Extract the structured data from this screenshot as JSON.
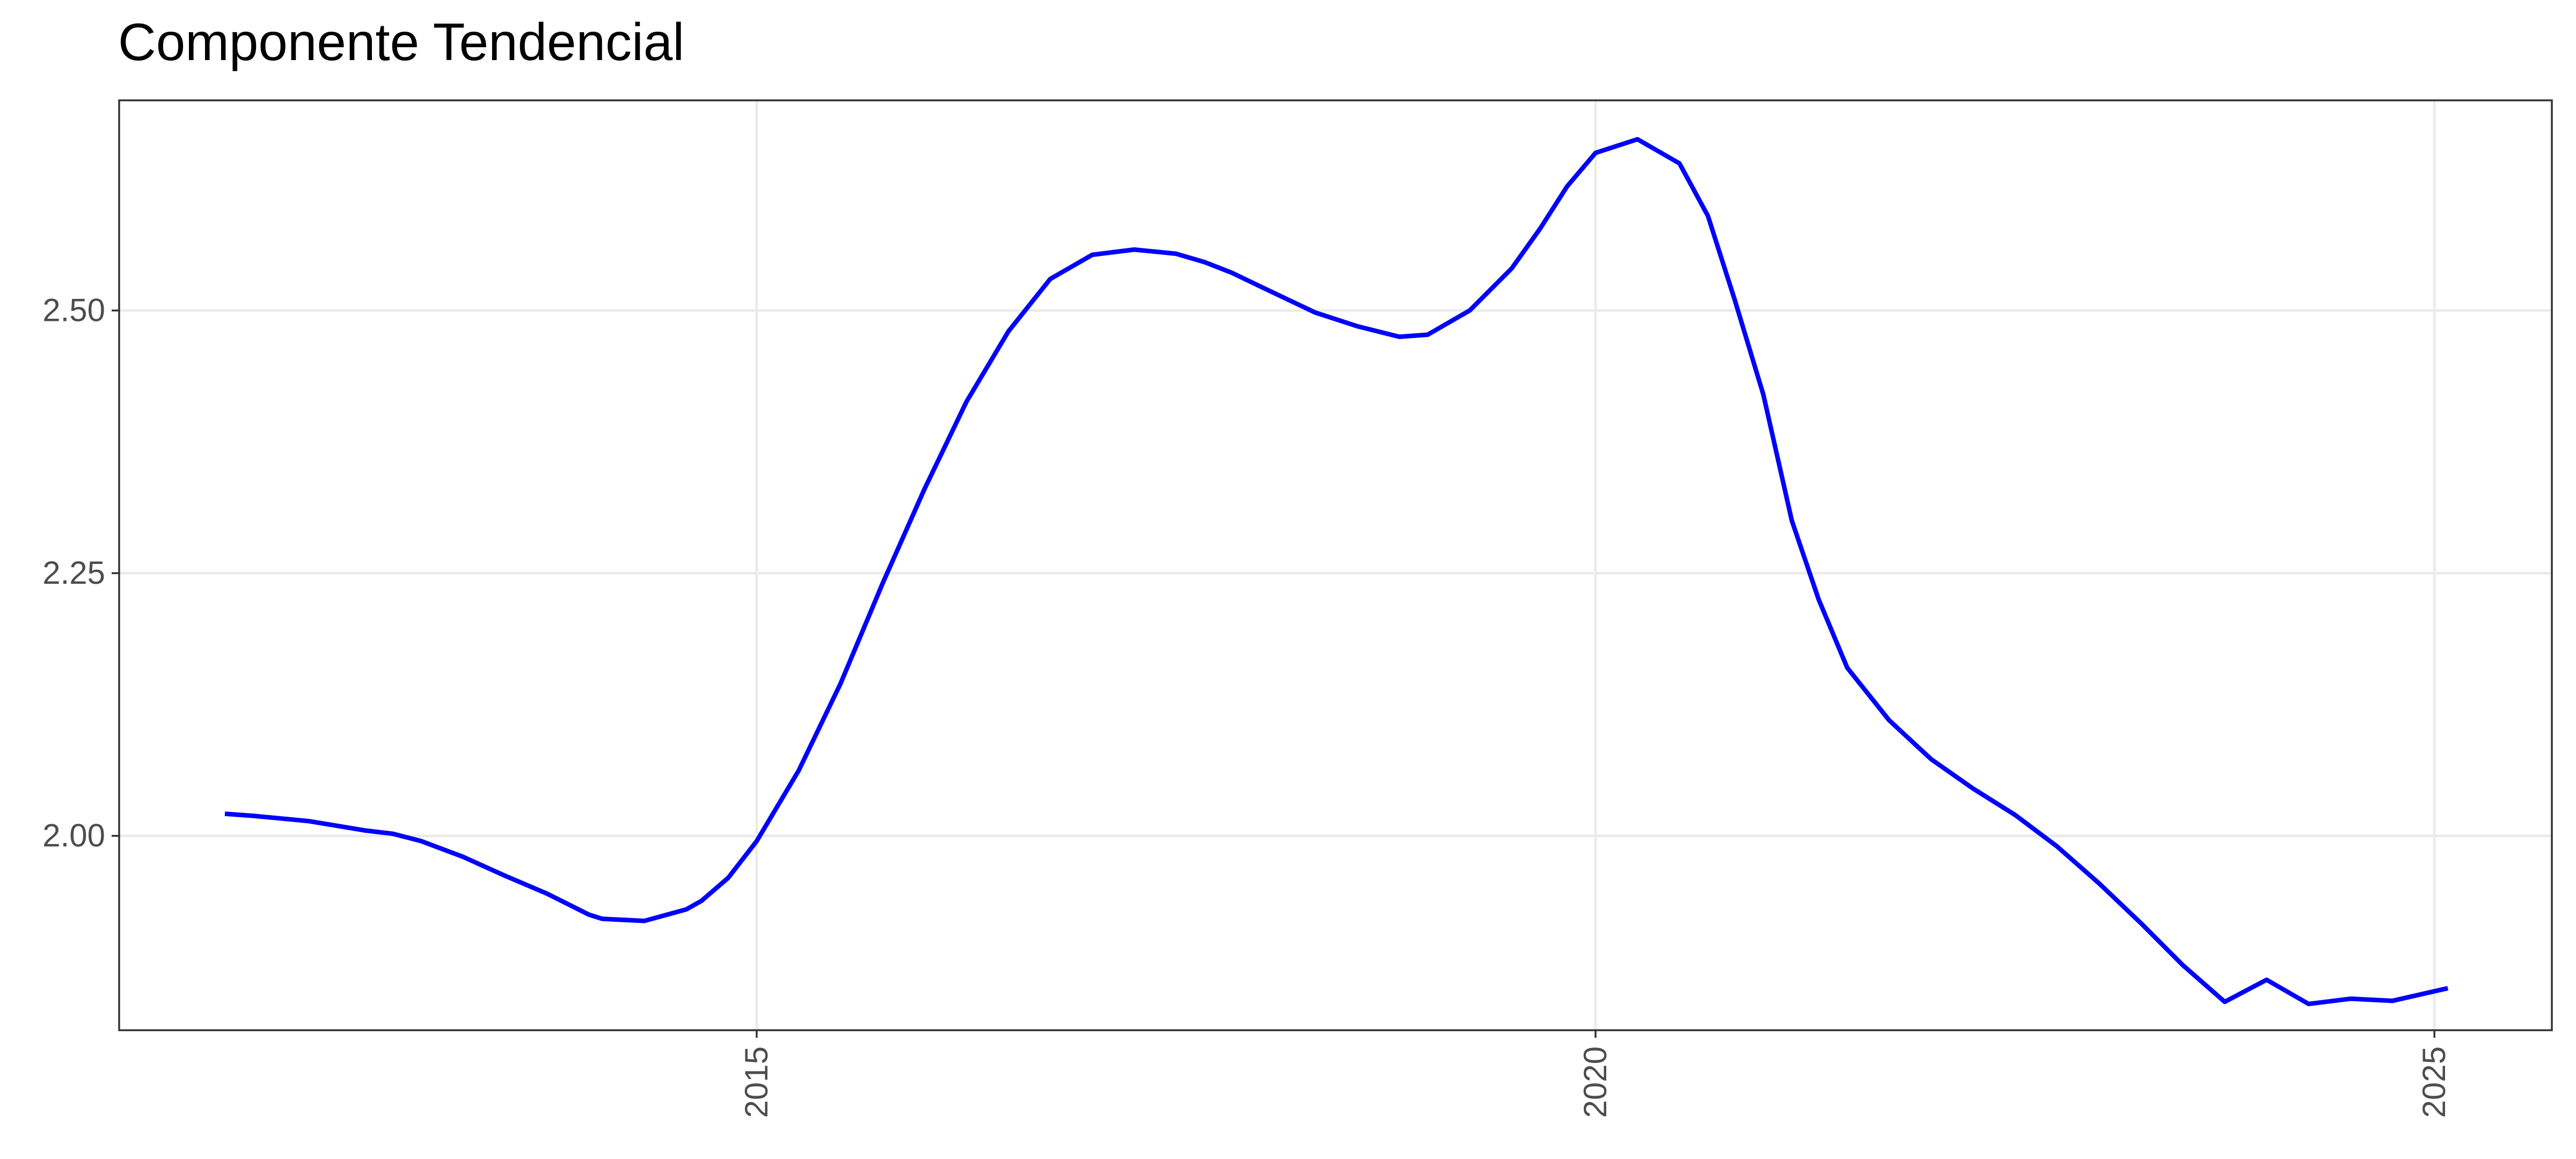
{
  "chart_data": {
    "type": "line",
    "title": "Componente Tendencial",
    "xlabel": "",
    "ylabel": "",
    "xlim": [
      2011.2,
      2025.7
    ],
    "ylim": [
      1.815,
      2.7
    ],
    "x_ticks": [
      2015,
      2020,
      2025
    ],
    "x_tick_labels": [
      "2015",
      "2020",
      "2025"
    ],
    "y_ticks": [
      2.0,
      2.25,
      2.5
    ],
    "y_tick_labels": [
      "2.00",
      "2.25",
      "2.50"
    ],
    "grid": true,
    "legend": "none",
    "color": "#0000ff",
    "series": [
      {
        "x": [
          2011.83,
          2012.0,
          2012.33,
          2012.67,
          2012.83,
          2013.0,
          2013.25,
          2013.5,
          2013.75,
          2014.0,
          2014.08,
          2014.33,
          2014.58,
          2014.67,
          2014.83,
          2015.0,
          2015.25,
          2015.5,
          2015.75,
          2016.0,
          2016.25,
          2016.5,
          2016.75,
          2017.0,
          2017.25,
          2017.5,
          2017.67,
          2017.83,
          2018.0,
          2018.33,
          2018.58,
          2018.83,
          2019.0,
          2019.25,
          2019.5,
          2019.67,
          2019.83,
          2020.0,
          2020.25,
          2020.5,
          2020.67,
          2020.83,
          2021.0,
          2021.17,
          2021.33,
          2021.5,
          2021.75,
          2022.0,
          2022.25,
          2022.5,
          2022.75,
          2023.0,
          2023.25,
          2023.5,
          2023.75,
          2024.0,
          2024.25,
          2024.5,
          2024.75,
          2025.08
        ],
        "y": [
          2.021,
          2.019,
          2.014,
          2.005,
          2.002,
          1.995,
          1.98,
          1.962,
          1.945,
          1.925,
          1.921,
          1.919,
          1.93,
          1.938,
          1.96,
          1.995,
          2.062,
          2.145,
          2.24,
          2.33,
          2.413,
          2.48,
          2.53,
          2.553,
          2.558,
          2.554,
          2.546,
          2.536,
          2.523,
          2.498,
          2.485,
          2.475,
          2.477,
          2.5,
          2.54,
          2.578,
          2.618,
          2.65,
          2.663,
          2.64,
          2.59,
          2.51,
          2.42,
          2.3,
          2.225,
          2.16,
          2.11,
          2.073,
          2.045,
          2.02,
          1.99,
          1.955,
          1.917,
          1.877,
          1.842,
          1.863,
          1.84,
          1.845,
          1.843,
          1.855
        ]
      }
    ]
  }
}
